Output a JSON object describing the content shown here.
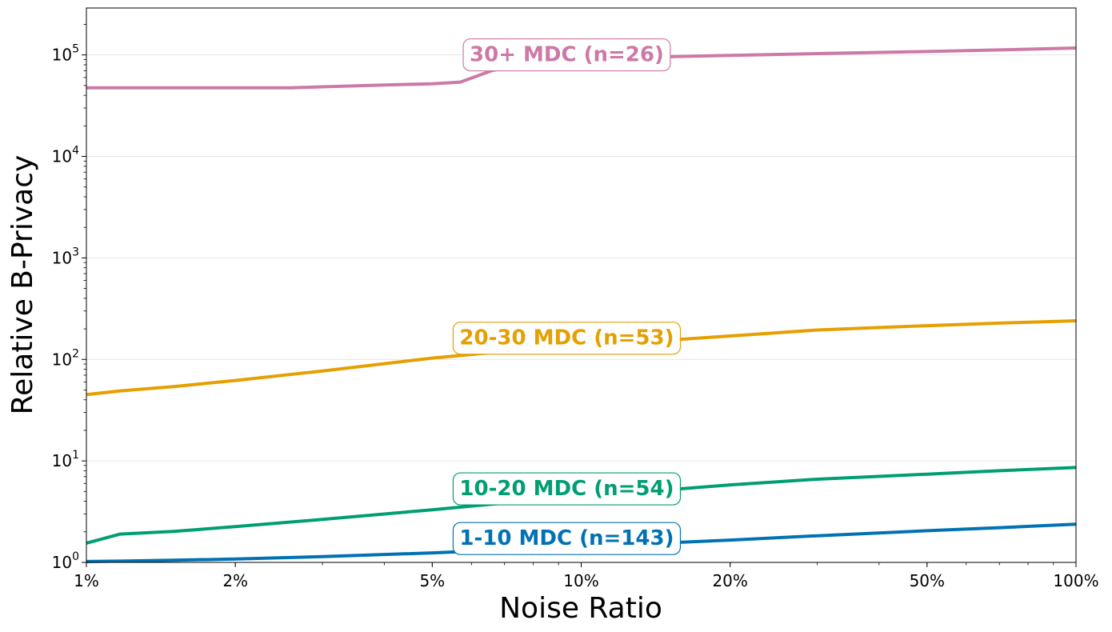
{
  "chart_data": {
    "type": "line",
    "xlabel": "Noise Ratio",
    "ylabel": "Relative B-Privacy",
    "xscale": "log",
    "yscale": "log",
    "xlim": [
      0.01,
      1.0
    ],
    "ylim": [
      1,
      290000
    ],
    "grid": "horizontal",
    "x_ticks": [
      {
        "value": 0.01,
        "label": "1%"
      },
      {
        "value": 0.02,
        "label": "2%"
      },
      {
        "value": 0.05,
        "label": "5%"
      },
      {
        "value": 0.1,
        "label": "10%"
      },
      {
        "value": 0.2,
        "label": "20%"
      },
      {
        "value": 0.5,
        "label": "50%"
      },
      {
        "value": 1.0,
        "label": "100%"
      }
    ],
    "y_ticks": [
      {
        "value": 1,
        "base": "10",
        "exp": "0"
      },
      {
        "value": 10,
        "base": "10",
        "exp": "1"
      },
      {
        "value": 100,
        "base": "10",
        "exp": "2"
      },
      {
        "value": 1000,
        "base": "10",
        "exp": "3"
      },
      {
        "value": 10000,
        "base": "10",
        "exp": "4"
      },
      {
        "value": 100000,
        "base": "10",
        "exp": "5"
      }
    ],
    "series": [
      {
        "name": "30+ MDC (n=26)",
        "color": "#cc79a7",
        "x": [
          0.01,
          0.0117,
          0.015,
          0.02,
          0.026,
          0.03,
          0.04,
          0.05,
          0.057,
          0.066,
          0.08,
          0.1,
          0.15,
          0.2,
          0.3,
          0.5,
          0.7,
          1.0
        ],
        "y": [
          47500,
          47500,
          47500,
          47500,
          47500,
          48500,
          50500,
          52000,
          54000,
          70000,
          84000,
          90000,
          96000,
          99000,
          103000,
          108000,
          112000,
          117000
        ],
        "label_x": 0.0935,
        "label_y": 102000
      },
      {
        "name": "20-30 MDC (n=53)",
        "color": "#e69f00",
        "x": [
          0.01,
          0.0117,
          0.015,
          0.02,
          0.03,
          0.05,
          0.07,
          0.1,
          0.15,
          0.2,
          0.3,
          0.5,
          0.7,
          1.0
        ],
        "y": [
          45,
          49,
          54,
          62,
          77,
          103,
          120,
          135,
          155,
          170,
          195,
          215,
          228,
          240
        ],
        "label_x": 0.0935,
        "label_y": 165
      },
      {
        "name": "10-20 MDC (n=54)",
        "color": "#009e73",
        "x": [
          0.01,
          0.0117,
          0.015,
          0.02,
          0.03,
          0.05,
          0.07,
          0.1,
          0.15,
          0.2,
          0.3,
          0.5,
          0.7,
          1.0
        ],
        "y": [
          1.55,
          1.9,
          2.02,
          2.25,
          2.65,
          3.3,
          3.85,
          4.4,
          5.2,
          5.8,
          6.6,
          7.4,
          8.0,
          8.6
        ],
        "label_x": 0.0935,
        "label_y": 5.4
      },
      {
        "name": "1-10 MDC (n=143)",
        "color": "#0072b2",
        "x": [
          0.01,
          0.0117,
          0.015,
          0.02,
          0.03,
          0.05,
          0.07,
          0.1,
          0.15,
          0.2,
          0.3,
          0.5,
          0.7,
          1.0
        ],
        "y": [
          1.02,
          1.03,
          1.05,
          1.08,
          1.14,
          1.24,
          1.33,
          1.43,
          1.56,
          1.66,
          1.83,
          2.05,
          2.2,
          2.38
        ],
        "label_x": 0.0935,
        "label_y": 1.75
      }
    ]
  }
}
